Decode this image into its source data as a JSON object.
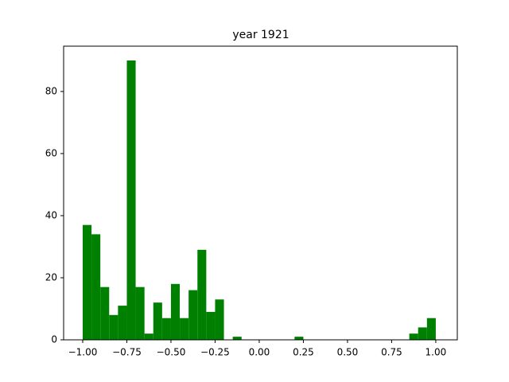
{
  "chart_data": {
    "type": "histogram",
    "title": "year 1921",
    "color": "#008000",
    "bins": [
      -1.0,
      -0.95,
      -0.9,
      -0.85,
      -0.8,
      -0.75,
      -0.7,
      -0.65,
      -0.6,
      -0.55,
      -0.5,
      -0.45,
      -0.4,
      -0.35,
      -0.3,
      -0.25,
      -0.2,
      -0.15,
      -0.1,
      -0.05,
      0.0,
      0.05,
      0.1,
      0.15,
      0.2,
      0.25,
      0.3,
      0.35,
      0.4,
      0.45,
      0.5,
      0.55,
      0.6,
      0.65,
      0.7,
      0.75,
      0.8,
      0.85,
      0.9,
      0.95,
      1.0
    ],
    "counts": [
      37,
      34,
      17,
      8,
      11,
      90,
      17,
      2,
      12,
      7,
      18,
      7,
      16,
      29,
      9,
      13,
      0,
      1,
      0,
      0,
      0,
      0,
      0,
      0,
      1,
      0,
      0,
      0,
      0,
      0,
      0,
      0,
      0,
      0,
      0,
      0,
      0,
      2,
      4,
      7
    ],
    "xlim": [
      -1.108,
      1.122
    ],
    "ylim": [
      0,
      94.6
    ],
    "xticks": [
      {
        "value": -1.0,
        "label": "−1.00"
      },
      {
        "value": -0.75,
        "label": "−0.75"
      },
      {
        "value": -0.5,
        "label": "−0.50"
      },
      {
        "value": -0.25,
        "label": "−0.25"
      },
      {
        "value": 0.0,
        "label": "0.00"
      },
      {
        "value": 0.25,
        "label": "0.25"
      },
      {
        "value": 0.5,
        "label": "0.50"
      },
      {
        "value": 0.75,
        "label": "0.75"
      },
      {
        "value": 1.0,
        "label": "1.00"
      }
    ],
    "yticks": [
      0,
      20,
      40,
      60,
      80
    ]
  }
}
